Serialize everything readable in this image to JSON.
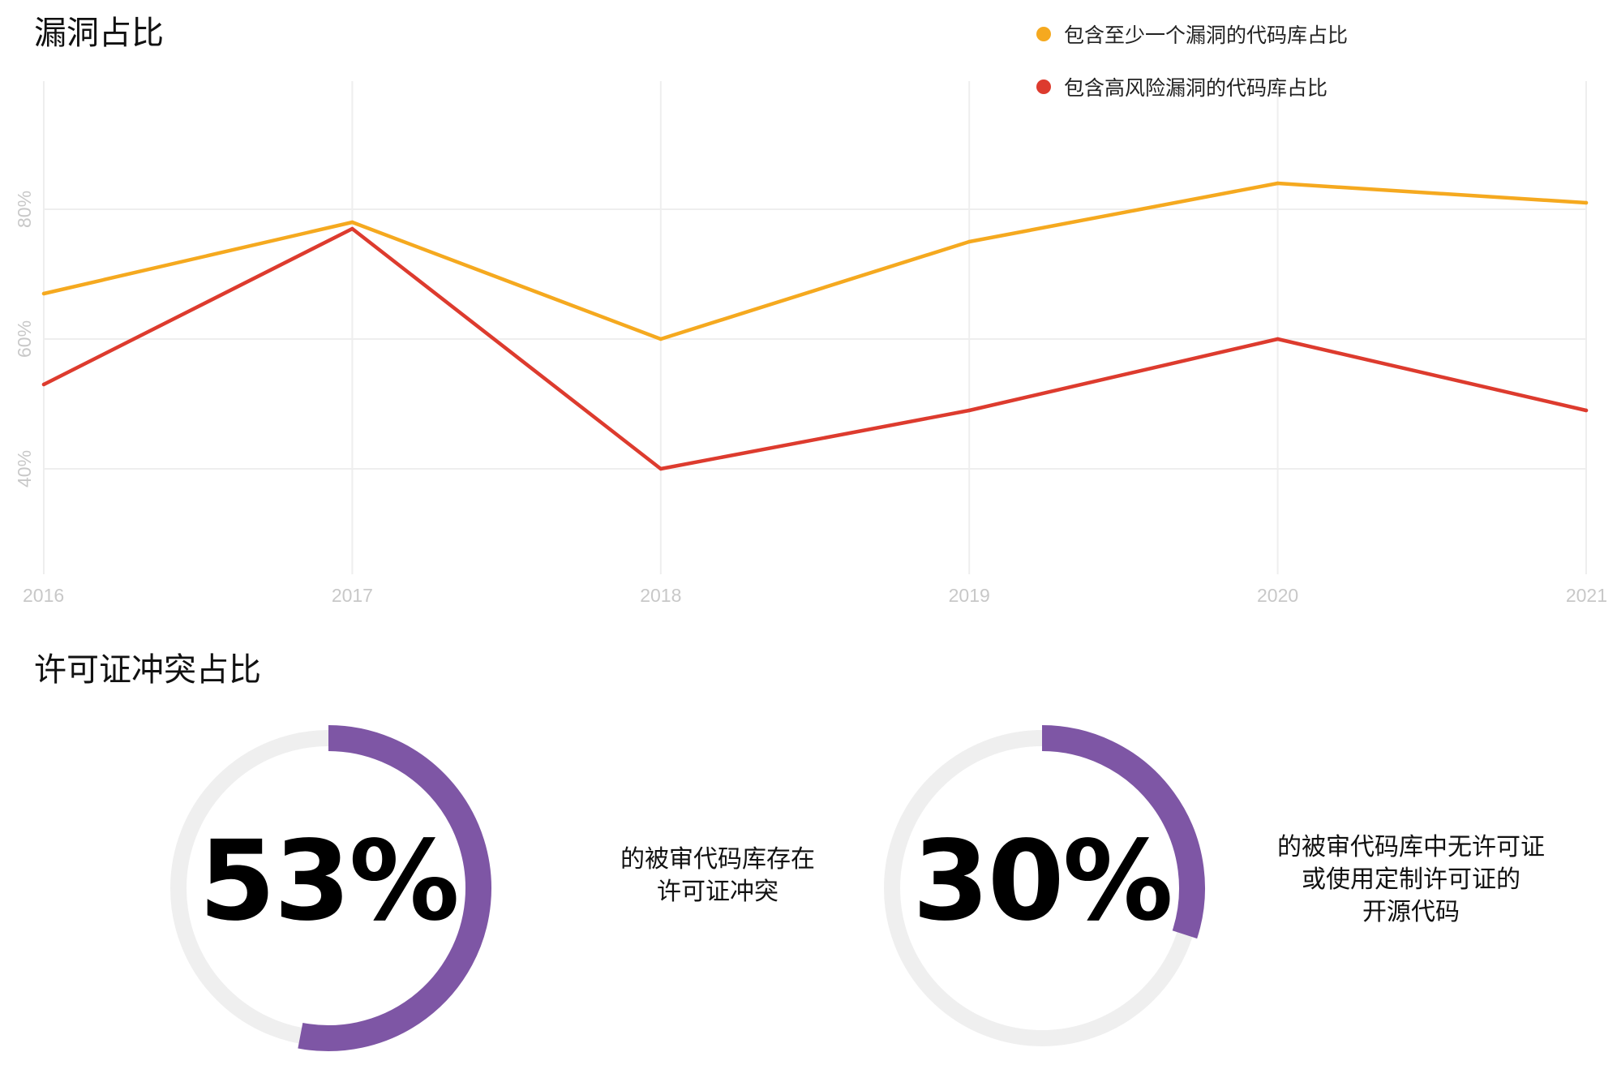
{
  "chart_data": [
    {
      "type": "line",
      "title": "漏洞占比",
      "x": [
        "2016",
        "2017",
        "2018",
        "2019",
        "2020",
        "2021"
      ],
      "y_ticks": [
        "40%",
        "60%",
        "80%"
      ],
      "ylim": [
        20,
        100
      ],
      "grid": true,
      "legend_position": "top-right",
      "series": [
        {
          "name": "包含至少一个漏洞的代码库占比",
          "color": "#F5A91F",
          "values": [
            67,
            78,
            60,
            75,
            84,
            81
          ]
        },
        {
          "name": "包含高风险漏洞的代码库占比",
          "color": "#DD3B2E",
          "values": [
            53,
            77,
            40,
            49,
            60,
            49
          ]
        }
      ]
    },
    {
      "type": "pie",
      "title": "许可证冲突占比",
      "items": [
        {
          "value": 53,
          "label": "53%",
          "caption": "的被审代码库存在\n许可证冲突",
          "color": "#7E56A5",
          "track_color": "#EFEFEF"
        },
        {
          "value": 30,
          "label": "30%",
          "caption": "的被审代码库中无许可证\n或使用定制许可证的\n开源代码",
          "color": "#7E56A5",
          "track_color": "#EFEFEF"
        }
      ]
    }
  ]
}
